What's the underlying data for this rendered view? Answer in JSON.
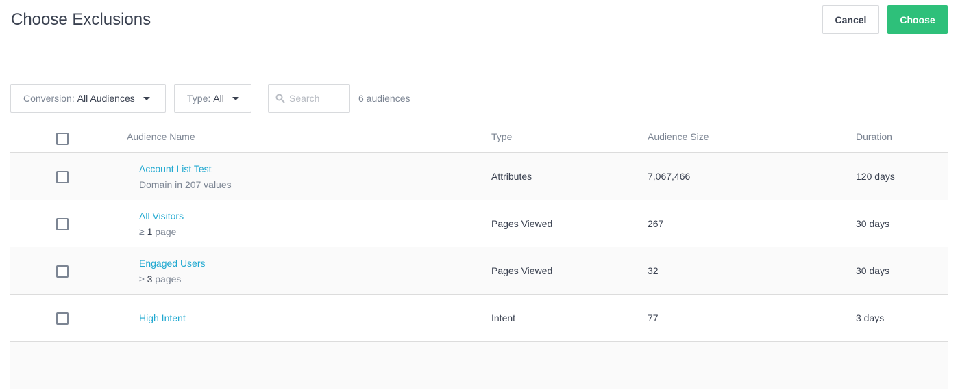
{
  "header": {
    "title": "Choose Exclusions",
    "cancel_label": "Cancel",
    "choose_label": "Choose"
  },
  "filters": {
    "conversion_label": "Conversion:",
    "conversion_value": "All Audiences",
    "type_label": "Type:",
    "type_value": "All",
    "search_placeholder": "Search",
    "count": "6 audiences"
  },
  "table": {
    "columns": [
      "Audience Name",
      "Type",
      "Audience Size",
      "Duration"
    ],
    "rows": [
      {
        "name": "Account List Test",
        "sub_prefix": "Domain in 207 values",
        "sub_value": "",
        "type": "Attributes",
        "size": "7,067,466",
        "duration": "120 days"
      },
      {
        "name": "All Visitors",
        "sub_prefix": "≥",
        "sub_value": "1",
        "sub_suffix": "page",
        "type": "Pages Viewed",
        "size": "267",
        "duration": "30 days"
      },
      {
        "name": "Engaged Users",
        "sub_prefix": "≥",
        "sub_value": "3",
        "sub_suffix": "pages",
        "type": "Pages Viewed",
        "size": "32",
        "duration": "30 days"
      },
      {
        "name": "High Intent",
        "type": "Intent",
        "size": "77",
        "duration": "3 days"
      }
    ]
  },
  "colors": {
    "accent": "#2ec07a",
    "link": "#1fa8d0"
  }
}
